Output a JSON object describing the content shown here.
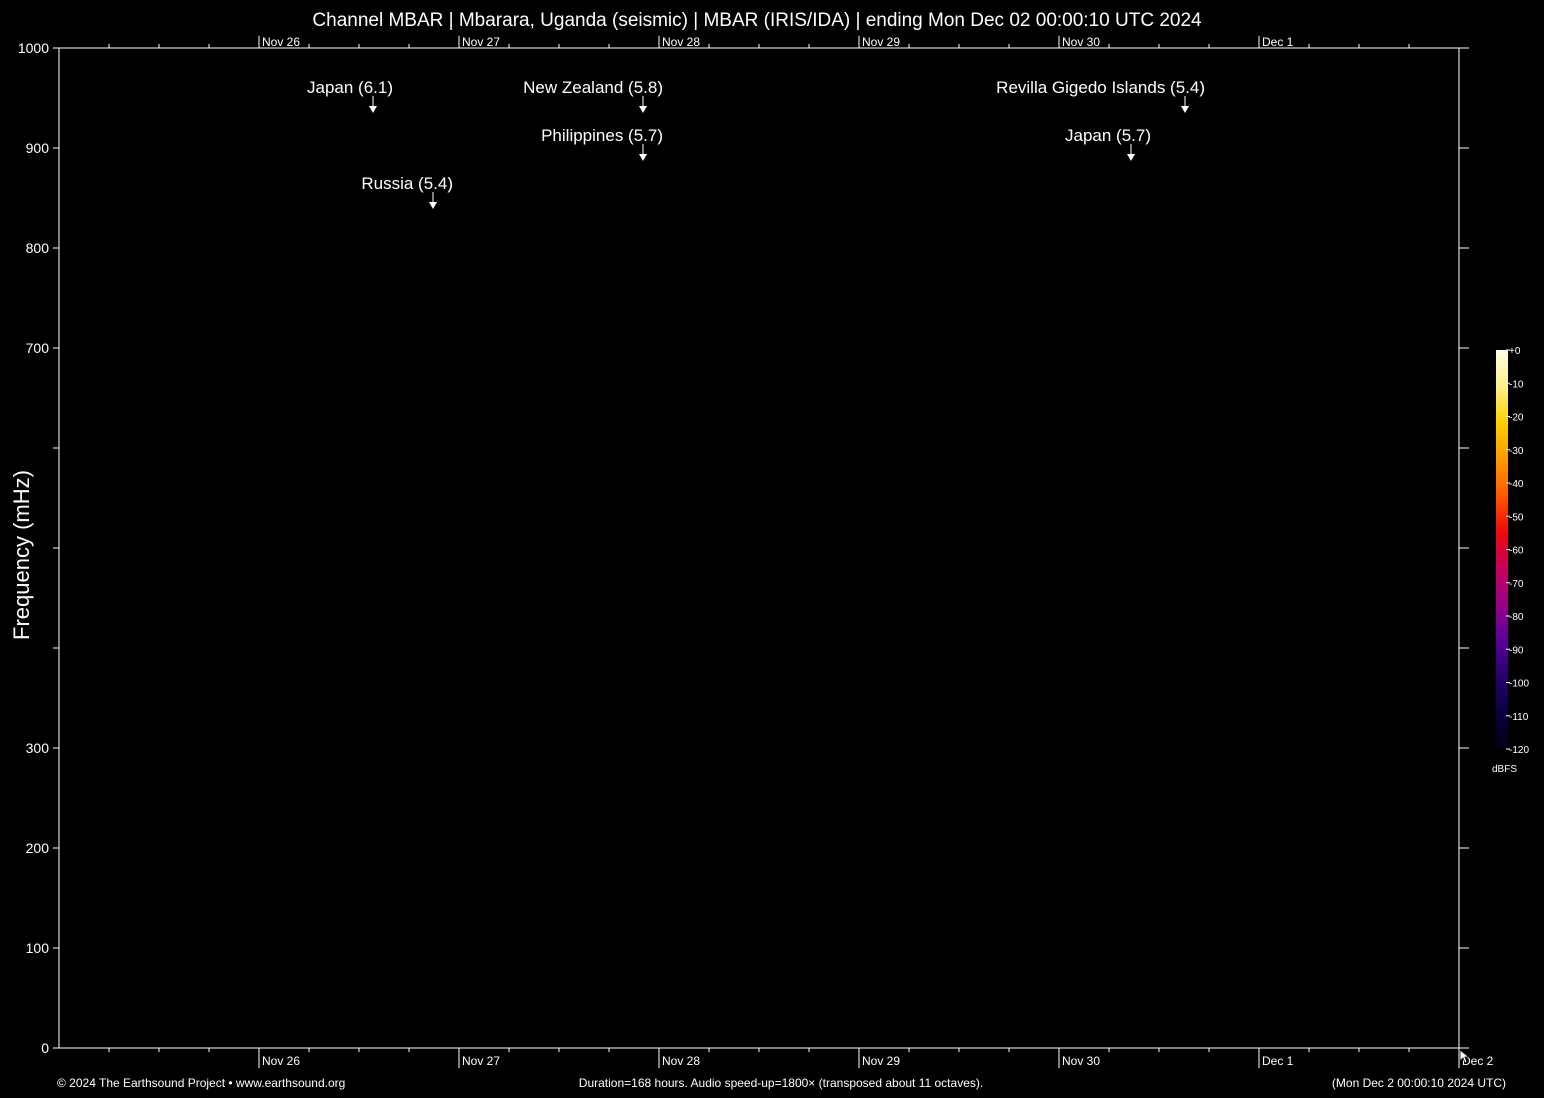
{
  "title": "Channel MBAR | Mbarara, Uganda (seismic) | MBAR (IRIS/IDA) | ending Mon Dec 02 00:00:10 UTC 2024",
  "footer": {
    "copyright": "© 2024 The Earthsound Project • www.earthsound.org",
    "info": "Duration=168 hours. Audio speed-up=1800× (transposed about 11 octaves).",
    "timestamp": "(Mon Dec  2 00:00:10 2024 UTC)"
  },
  "colors": {
    "background": "#000000",
    "foreground": "#ffffff",
    "colorbar": [
      "#fffce8",
      "#fff08a",
      "#ffd000",
      "#ff9a00",
      "#ff5a00",
      "#ee0a0a",
      "#c8005a",
      "#9a0088",
      "#5a0099",
      "#26006e",
      "#0a0040",
      "#000014"
    ]
  },
  "chart_data": {
    "type": "heatmap",
    "title": "Channel MBAR | Mbarara, Uganda (seismic) | MBAR (IRIS/IDA) | ending Mon Dec 02 00:00:10 UTC 2024",
    "xlabel": "",
    "ylabel": "Frequency (mHz)",
    "ylim": [
      0,
      1000
    ],
    "y_ticks": [
      0,
      100,
      200,
      300,
      400,
      500,
      600,
      700,
      800,
      900,
      1000
    ],
    "y_tick_labels": [
      "0",
      "100",
      "200",
      "300",
      "",
      "",
      "",
      "700",
      "800",
      "900",
      "1000"
    ],
    "xlim_days": [
      0,
      7
    ],
    "x_ticks_top": [
      {
        "day": 1,
        "label": "Nov 26"
      },
      {
        "day": 2,
        "label": "Nov 27"
      },
      {
        "day": 3,
        "label": "Nov 28"
      },
      {
        "day": 4,
        "label": "Nov 29"
      },
      {
        "day": 5,
        "label": "Nov 30"
      },
      {
        "day": 6,
        "label": "Dec  1"
      }
    ],
    "x_ticks_bottom": [
      {
        "day": 1,
        "label": "Nov 26"
      },
      {
        "day": 2,
        "label": "Nov 27"
      },
      {
        "day": 3,
        "label": "Nov 28"
      },
      {
        "day": 4,
        "label": "Nov 29"
      },
      {
        "day": 5,
        "label": "Nov 30"
      },
      {
        "day": 6,
        "label": "Dec  1"
      },
      {
        "day": 7,
        "label": "Dec  2"
      }
    ],
    "events": [
      {
        "label": "Japan (6.1)",
        "day": 1.57,
        "row": 0
      },
      {
        "label": "Russia (5.4)",
        "day": 1.87,
        "row": 2
      },
      {
        "label": "New Zealand (5.8)",
        "day": 2.92,
        "row": 0
      },
      {
        "label": "Philippines (5.7)",
        "day": 2.92,
        "row": 1
      },
      {
        "label": "Revilla Gigedo Islands (5.4)",
        "day": 5.63,
        "row": 0
      },
      {
        "label": "Japan (5.7)",
        "day": 5.36,
        "row": 1
      }
    ],
    "colorbar": {
      "ticks": [
        "+0",
        "-10",
        "-20",
        "-30",
        "-40",
        "-50",
        "-60",
        "-70",
        "-80",
        "-90",
        "-100",
        "-110",
        "-120"
      ],
      "label": "dBFS"
    },
    "grid": false
  }
}
